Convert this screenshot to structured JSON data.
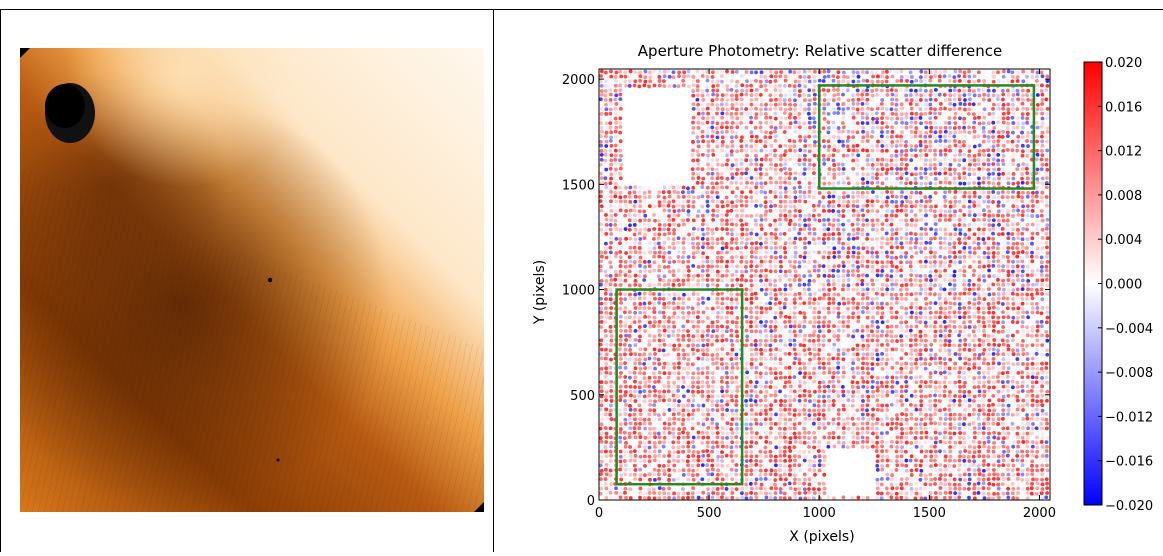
{
  "left_image": {
    "description_icon": "detector-flat-field-image"
  },
  "chart_data": {
    "type": "scatter",
    "title": "Aperture Photometry: Relative scatter difference",
    "xlabel": "X (pixels)",
    "ylabel": "Y (pixels)",
    "xlim": [
      0,
      2048
    ],
    "ylim": [
      0,
      2048
    ],
    "xticks": [
      "0",
      "500",
      "1000",
      "1500",
      "2000"
    ],
    "xtick_values": [
      0,
      500,
      1000,
      1500,
      2000
    ],
    "yticks": [
      "0",
      "500",
      "1000",
      "1500",
      "2000"
    ],
    "ytick_values": [
      0,
      500,
      1000,
      1500,
      2000
    ],
    "colorbar": {
      "min": -0.02,
      "max": 0.02,
      "ticks": [
        "0.020",
        "0.016",
        "0.012",
        "0.008",
        "0.004",
        "0.000",
        "−0.004",
        "−0.008",
        "−0.012",
        "−0.016",
        "−0.020"
      ],
      "tick_values": [
        0.02,
        0.016,
        0.012,
        0.008,
        0.004,
        0.0,
        -0.004,
        -0.008,
        -0.012,
        -0.016,
        -0.02
      ],
      "colormap": "bwr",
      "low_color": "#0000ff",
      "mid_color": "#ffffff",
      "high_color": "#ff0000"
    },
    "regions": [
      {
        "x0": 1000,
        "x1": 1975,
        "y0": 1480,
        "y1": 1970,
        "color": "#228b22"
      },
      {
        "x0": 80,
        "x1": 650,
        "y0": 75,
        "y1": 1000,
        "color": "#228b22"
      }
    ],
    "empty_areas": [
      {
        "x0": 100,
        "x1": 420,
        "y0": 1500,
        "y1": 1950
      },
      {
        "x0": 1030,
        "x1": 1260,
        "y0": 20,
        "y1": 230
      }
    ],
    "grid_step": 22,
    "grid": false,
    "legend": "none"
  }
}
